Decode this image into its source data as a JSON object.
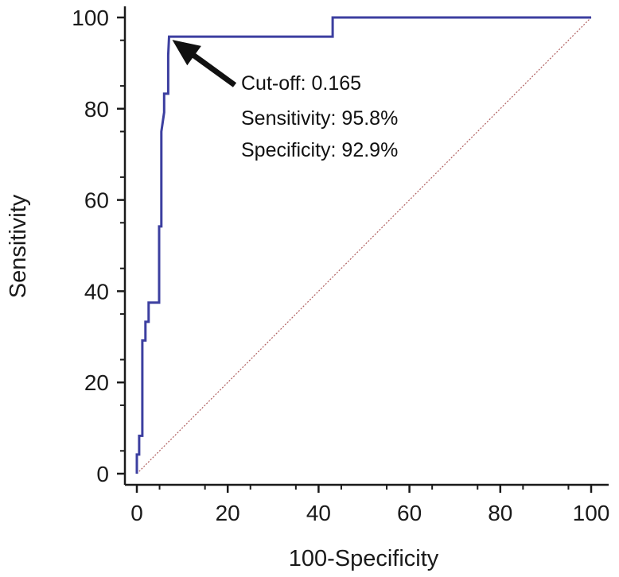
{
  "chart_data": {
    "type": "line",
    "xlabel": "100-Specificity",
    "ylabel": "Sensitivity",
    "xlim": [
      0,
      100
    ],
    "ylim": [
      0,
      100
    ],
    "x_ticks": [
      0,
      20,
      40,
      60,
      80,
      100
    ],
    "y_ticks": [
      0,
      20,
      40,
      60,
      80,
      100
    ],
    "grid": false,
    "series": [
      {
        "color": "#3c3fa0",
        "x": [
          0,
          0,
          0.5,
          0.5,
          1.2,
          1.2,
          1.9,
          1.9,
          2.6,
          2.6,
          3.3,
          3.3,
          4.9,
          4.9,
          5.4,
          5.4,
          6.0,
          6.0,
          6.9,
          6.9,
          7.1,
          43.1,
          43.1,
          100
        ],
        "y": [
          0,
          4.2,
          4.2,
          8.3,
          8.3,
          29.2,
          29.2,
          33.3,
          33.3,
          37.5,
          37.5,
          37.5,
          37.5,
          54.2,
          54.2,
          75.0,
          79.2,
          83.3,
          83.3,
          91.7,
          95.8,
          95.8,
          100,
          100
        ]
      },
      {
        "color": "#b06060",
        "style": "dotted",
        "x": [
          0,
          100
        ],
        "y": [
          0,
          100
        ]
      }
    ],
    "annotation": {
      "point": {
        "x": 7.1,
        "y": 95.8
      },
      "lines": [
        "Cut-off: 0.165",
        "Sensitivity: 95.8%",
        "Specificity: 92.9%"
      ]
    }
  }
}
